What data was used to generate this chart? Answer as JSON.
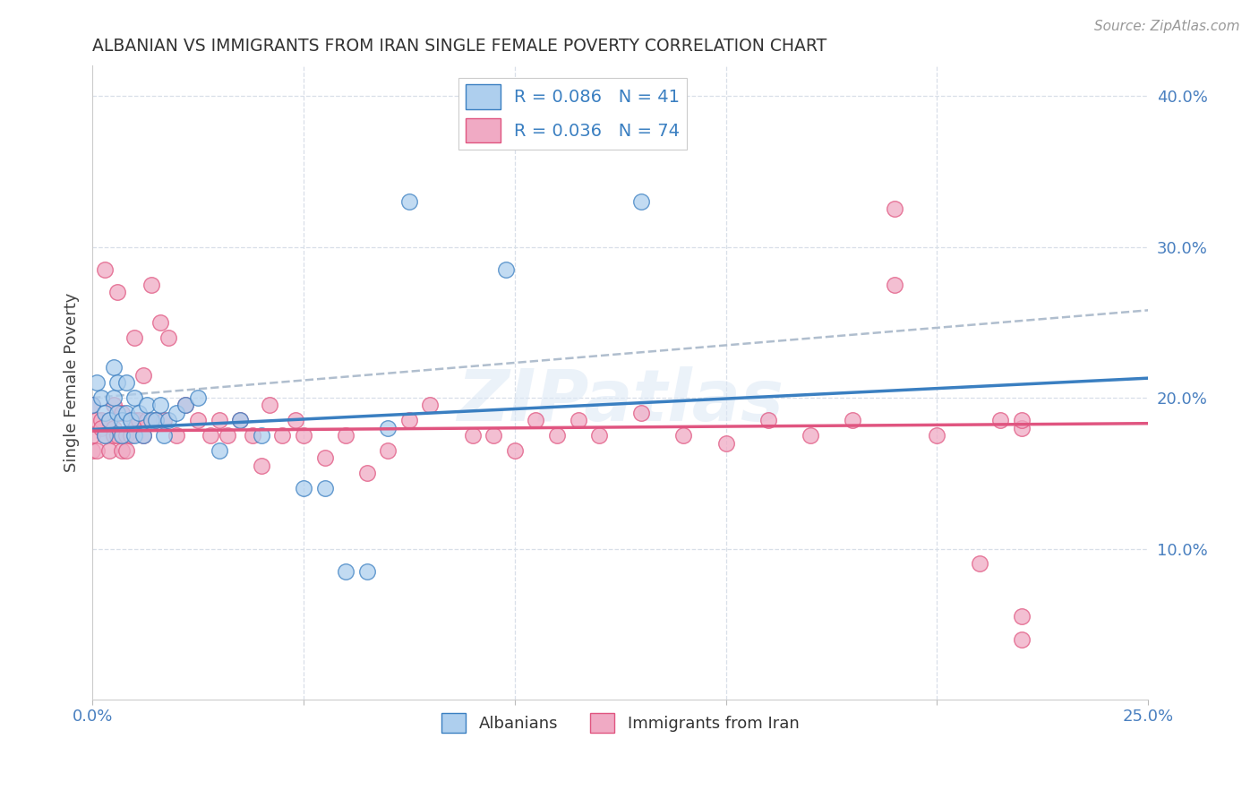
{
  "title": "ALBANIAN VS IMMIGRANTS FROM IRAN SINGLE FEMALE POVERTY CORRELATION CHART",
  "source": "Source: ZipAtlas.com",
  "ylabel": "Single Female Poverty",
  "xlim": [
    0.0,
    0.25
  ],
  "ylim": [
    0.0,
    0.42
  ],
  "legend_label1": "R = 0.086   N = 41",
  "legend_label2": "R = 0.036   N = 74",
  "legend_color1": "#aecfee",
  "legend_color2": "#f0aac4",
  "scatter_color1": "#aecfee",
  "scatter_color2": "#f0aac4",
  "trendline_color1": "#3a7fc1",
  "trendline_color2": "#e05580",
  "watermark": "ZIPatlas",
  "alb_trendline": [
    0.179,
    0.213
  ],
  "iran_trendline": [
    0.178,
    0.183
  ],
  "dash_line": [
    0.2,
    0.258
  ],
  "albanians_x": [
    0.0,
    0.001,
    0.002,
    0.003,
    0.003,
    0.004,
    0.005,
    0.005,
    0.006,
    0.006,
    0.007,
    0.007,
    0.008,
    0.008,
    0.009,
    0.01,
    0.01,
    0.011,
    0.012,
    0.013,
    0.014,
    0.015,
    0.016,
    0.017,
    0.018,
    0.02,
    0.022,
    0.025,
    0.03,
    0.035,
    0.04,
    0.05,
    0.055,
    0.06,
    0.065,
    0.07,
    0.075,
    0.098,
    0.11,
    0.115,
    0.13
  ],
  "albanians_y": [
    0.195,
    0.21,
    0.2,
    0.19,
    0.175,
    0.185,
    0.22,
    0.2,
    0.19,
    0.21,
    0.185,
    0.175,
    0.21,
    0.19,
    0.185,
    0.2,
    0.175,
    0.19,
    0.175,
    0.195,
    0.185,
    0.185,
    0.195,
    0.175,
    0.185,
    0.19,
    0.195,
    0.2,
    0.165,
    0.185,
    0.175,
    0.14,
    0.14,
    0.085,
    0.085,
    0.18,
    0.33,
    0.285,
    0.37,
    0.37,
    0.33
  ],
  "iran_x": [
    0.0,
    0.0,
    0.0,
    0.001,
    0.001,
    0.002,
    0.002,
    0.003,
    0.003,
    0.004,
    0.004,
    0.005,
    0.005,
    0.005,
    0.006,
    0.006,
    0.007,
    0.007,
    0.008,
    0.008,
    0.009,
    0.009,
    0.01,
    0.01,
    0.011,
    0.012,
    0.012,
    0.013,
    0.014,
    0.015,
    0.016,
    0.017,
    0.018,
    0.02,
    0.022,
    0.025,
    0.028,
    0.03,
    0.032,
    0.035,
    0.038,
    0.04,
    0.042,
    0.045,
    0.048,
    0.05,
    0.055,
    0.06,
    0.065,
    0.07,
    0.075,
    0.08,
    0.09,
    0.095,
    0.1,
    0.105,
    0.11,
    0.115,
    0.12,
    0.13,
    0.14,
    0.15,
    0.16,
    0.17,
    0.18,
    0.19,
    0.2,
    0.21,
    0.215,
    0.22,
    0.19,
    0.22,
    0.22,
    0.22
  ],
  "iran_y": [
    0.195,
    0.175,
    0.165,
    0.185,
    0.165,
    0.185,
    0.18,
    0.285,
    0.175,
    0.185,
    0.165,
    0.18,
    0.175,
    0.195,
    0.27,
    0.175,
    0.19,
    0.165,
    0.175,
    0.165,
    0.185,
    0.175,
    0.24,
    0.185,
    0.185,
    0.215,
    0.175,
    0.185,
    0.275,
    0.185,
    0.25,
    0.185,
    0.24,
    0.175,
    0.195,
    0.185,
    0.175,
    0.185,
    0.175,
    0.185,
    0.175,
    0.155,
    0.195,
    0.175,
    0.185,
    0.175,
    0.16,
    0.175,
    0.15,
    0.165,
    0.185,
    0.195,
    0.175,
    0.175,
    0.165,
    0.185,
    0.175,
    0.185,
    0.175,
    0.19,
    0.175,
    0.17,
    0.185,
    0.175,
    0.185,
    0.275,
    0.175,
    0.09,
    0.185,
    0.18,
    0.325,
    0.04,
    0.055,
    0.185
  ]
}
